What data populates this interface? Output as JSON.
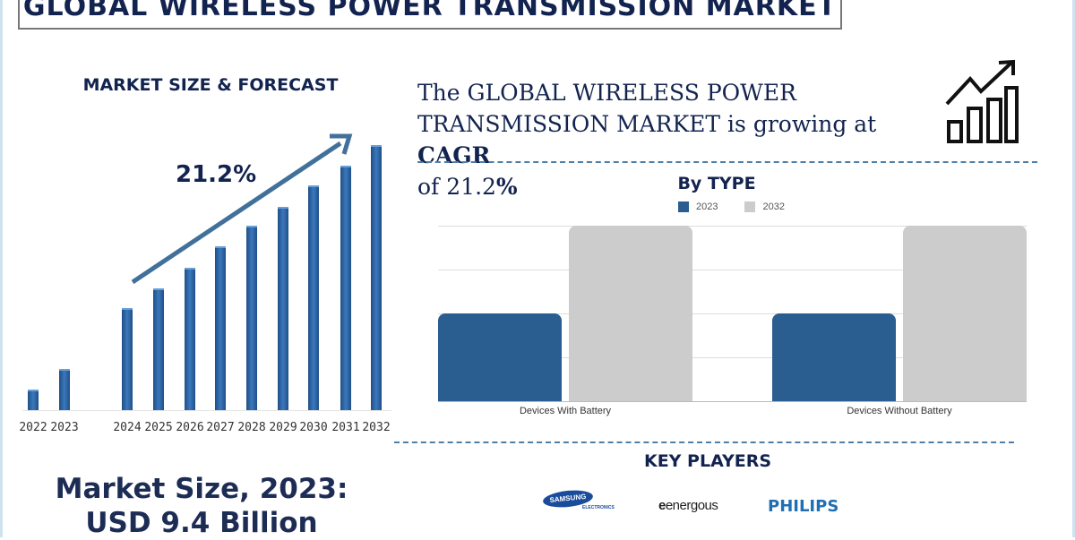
{
  "title": "GLOBAL WIRELESS POWER TRANSMISSION MARKET",
  "colors": {
    "navy": "#12234f",
    "bar_blue": "#2a5e91",
    "bar_gray": "#cccccc"
  },
  "summary": {
    "line1": "The GLOBAL WIRELESS POWER",
    "line2a": "TRANSMISSION MARKET is growing at ",
    "cagr_label": "CAGR",
    "line3a": "of 21.2",
    "percent": "%",
    "icon": "growth-chart-arrow-icon"
  },
  "market_size": {
    "line1": "Market Size, 2023:",
    "line2": "USD 9.4 Billion"
  },
  "key_players": {
    "heading": "KEY PLAYERS",
    "logos": [
      {
        "name": "SAMSUNG",
        "sub": "ELECTRONICS"
      },
      {
        "name": "energous"
      },
      {
        "name": "PHILIPS"
      }
    ]
  },
  "chart_data": [
    {
      "type": "bar",
      "title": "MARKET SIZE & FORECAST",
      "annotation": "21.2%",
      "categories": [
        "2022",
        "2023",
        "2024",
        "2025",
        "2026",
        "2027",
        "2028",
        "2029",
        "2030",
        "2031",
        "2032"
      ],
      "values": [
        23,
        46,
        115,
        137,
        160,
        184,
        207,
        229,
        253,
        275,
        298
      ],
      "grid": false,
      "ylim": [
        0,
        300
      ]
    },
    {
      "type": "bar",
      "title": "By TYPE",
      "legend_placement": "top",
      "categories": [
        "Devices With Battery",
        "Devices Without Battery"
      ],
      "series": [
        {
          "name": "2023",
          "color": "#2a5e91",
          "values": [
            2,
            2
          ]
        },
        {
          "name": "2032",
          "color": "#cccccc",
          "values": [
            4,
            4
          ]
        }
      ],
      "ylim": [
        0,
        4
      ],
      "grid": true
    }
  ]
}
